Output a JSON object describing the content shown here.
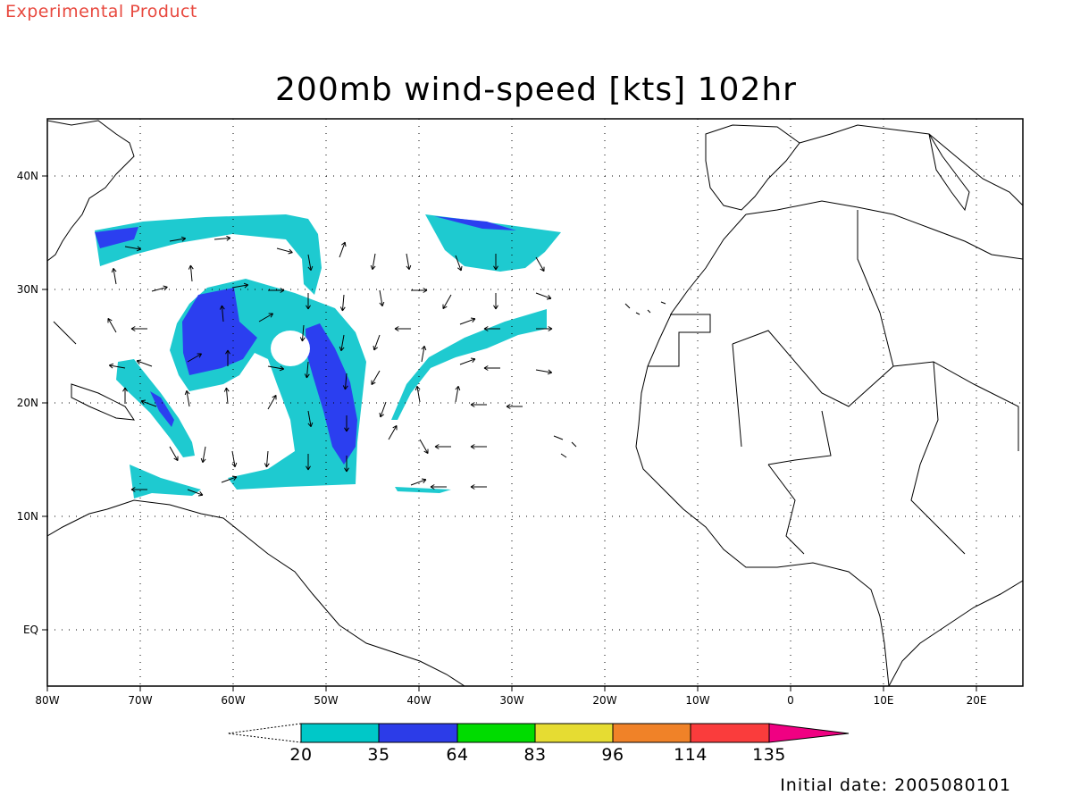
{
  "header": {
    "product_tag": "Experimental Product",
    "title": "200mb wind-speed [kts] 102hr"
  },
  "footer": {
    "initial_date": "Initial date: 2005080101"
  },
  "map": {
    "lon_ticks": [
      "80W",
      "70W",
      "60W",
      "50W",
      "40W",
      "30W",
      "20W",
      "10W",
      "0",
      "10E",
      "20E"
    ],
    "lat_ticks": [
      "40N",
      "30N",
      "20N",
      "10N",
      "EQ"
    ],
    "extent": {
      "lon": [
        -80,
        25
      ],
      "lat": [
        -5,
        45
      ]
    },
    "grid": "dotted every 10 degrees"
  },
  "colorbar": {
    "labels": [
      "20",
      "35",
      "64",
      "83",
      "96",
      "114",
      "135"
    ],
    "colors": [
      "#00c8c8",
      "#2c3ce8",
      "#00dc00",
      "#e6dc32",
      "#f08228",
      "#fa3c3c",
      "#f00082"
    ],
    "unit": "kts"
  },
  "legend_classes": {
    "light": "#1ecad0",
    "dark": "#2b3ff0"
  }
}
